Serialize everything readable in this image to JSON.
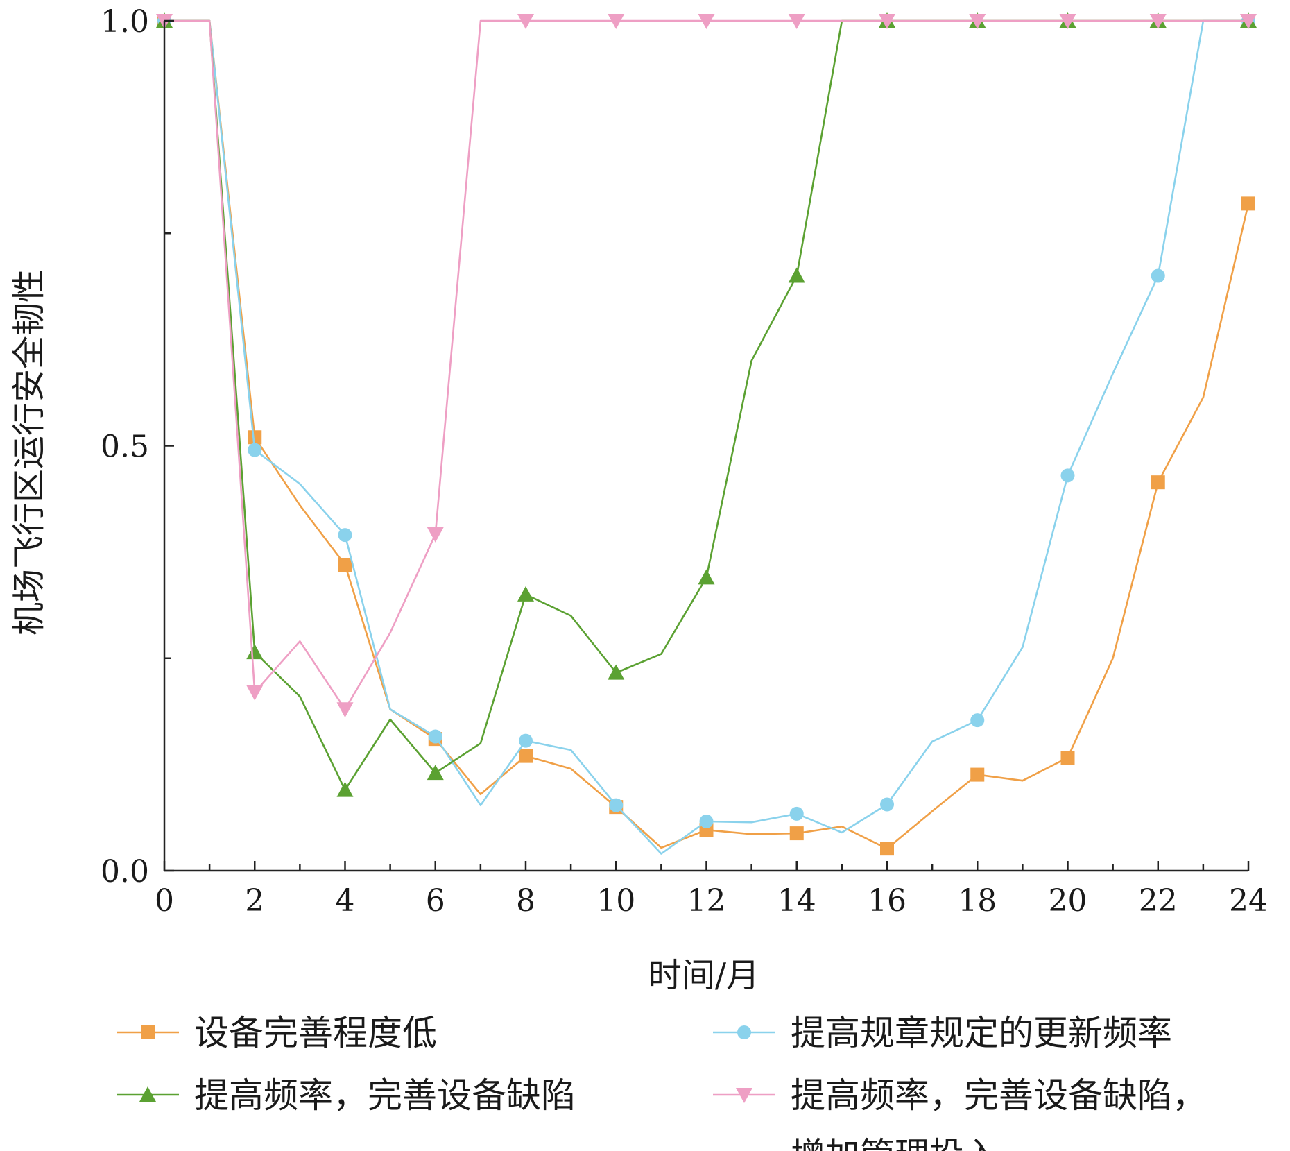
{
  "chart_data": {
    "type": "line",
    "xlabel": "时间/月",
    "ylabel": "机场飞行区运行安全韧性",
    "xlim": [
      0,
      24
    ],
    "ylim": [
      0,
      1
    ],
    "x_ticks": [
      "0",
      "2",
      "4",
      "6",
      "8",
      "10",
      "12",
      "14",
      "16",
      "18",
      "20",
      "22",
      "24"
    ],
    "y_ticks": [
      "0.0",
      "0.5",
      "1.0"
    ],
    "grid": false,
    "legend_position": "bottom",
    "series": [
      {
        "name": "设备完善程度低",
        "color": "#f0a047",
        "marker": "square",
        "x": [
          0,
          1,
          2,
          3,
          4,
          5,
          6,
          7,
          8,
          9,
          10,
          11,
          12,
          13,
          14,
          15,
          16,
          17,
          18,
          19,
          20,
          21,
          22,
          23,
          24
        ],
        "y": [
          1.0,
          1.0,
          0.51,
          0.43,
          0.36,
          0.19,
          0.155,
          0.09,
          0.135,
          0.12,
          0.075,
          0.027,
          0.048,
          0.043,
          0.044,
          0.052,
          0.026,
          0.07,
          0.113,
          0.106,
          0.133,
          0.25,
          0.457,
          0.557,
          0.785
        ]
      },
      {
        "name": "提高规章规定的更新频率",
        "color": "#8ad2ec",
        "marker": "circle",
        "x": [
          0,
          1,
          2,
          3,
          4,
          5,
          6,
          7,
          8,
          9,
          10,
          11,
          12,
          13,
          14,
          15,
          16,
          17,
          18,
          19,
          20,
          21,
          22,
          23,
          24
        ],
        "y": [
          1.0,
          1.0,
          0.495,
          0.455,
          0.395,
          0.19,
          0.158,
          0.077,
          0.153,
          0.142,
          0.077,
          0.02,
          0.058,
          0.057,
          0.067,
          0.045,
          0.078,
          0.152,
          0.177,
          0.263,
          0.465,
          0.585,
          0.7,
          1.0,
          1.0
        ]
      },
      {
        "name": "提高频率，完善设备缺陷",
        "color": "#5ba132",
        "marker": "triangle-up",
        "x": [
          0,
          1,
          2,
          3,
          4,
          5,
          6,
          7,
          8,
          9,
          10,
          11,
          12,
          13,
          14,
          15,
          16,
          17,
          18,
          19,
          20,
          21,
          22,
          23,
          24
        ],
        "y": [
          1.0,
          1.0,
          0.257,
          0.205,
          0.095,
          0.178,
          0.115,
          0.15,
          0.325,
          0.3,
          0.233,
          0.255,
          0.345,
          0.6,
          0.7,
          1.0,
          1.0,
          1.0,
          1.0,
          1.0,
          1.0,
          1.0,
          1.0,
          1.0,
          1.0
        ]
      },
      {
        "name": "提高频率，完善设备缺陷，增加管理投入",
        "label_lines": [
          "提高频率，完善设备缺陷，",
          "增加管理投入"
        ],
        "color": "#ee9fc4",
        "marker": "triangle-down",
        "x": [
          0,
          1,
          2,
          3,
          4,
          5,
          6,
          7,
          8,
          9,
          10,
          11,
          12,
          13,
          14,
          15,
          16,
          17,
          18,
          19,
          20,
          21,
          22,
          23,
          24
        ],
        "y": [
          1.0,
          1.0,
          0.21,
          0.27,
          0.19,
          0.28,
          0.396,
          1.0,
          1.0,
          1.0,
          1.0,
          1.0,
          1.0,
          1.0,
          1.0,
          1.0,
          1.0,
          1.0,
          1.0,
          1.0,
          1.0,
          1.0,
          1.0,
          1.0,
          1.0
        ]
      }
    ]
  }
}
